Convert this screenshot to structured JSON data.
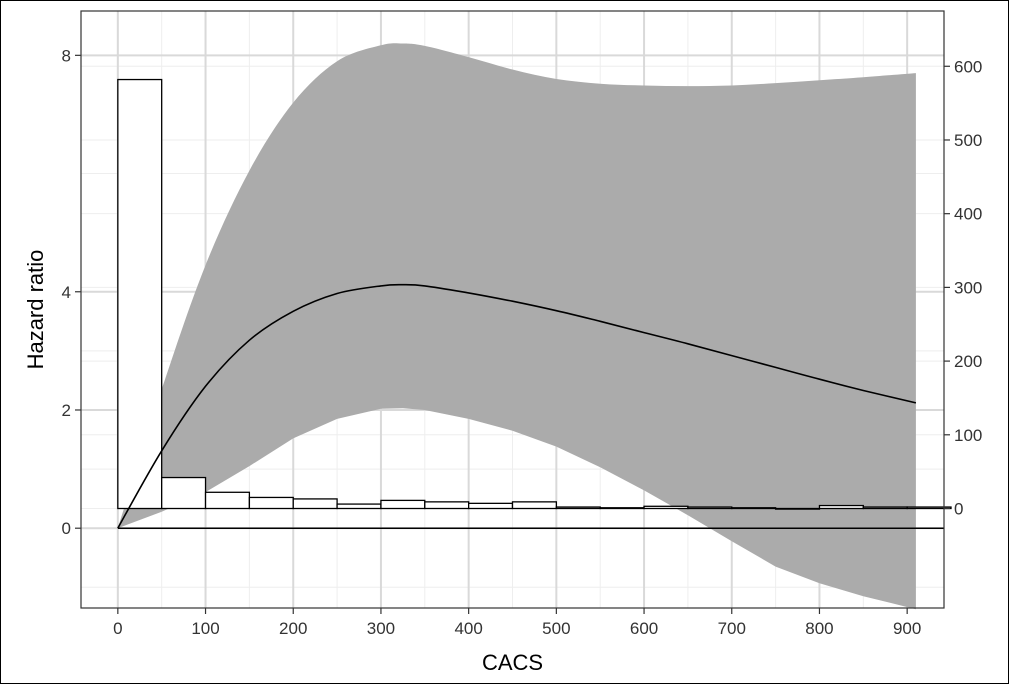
{
  "chart_data": {
    "type": "line",
    "title": "",
    "xlabel": "CACS",
    "ylabel": "Hazard ratio",
    "ylabel_right": "",
    "xlim": [
      -42,
      942
    ],
    "ylim": [
      -1.35,
      8.75
    ],
    "ylim_right": [
      -135,
      675
    ],
    "x_ticks": [
      0,
      100,
      200,
      300,
      400,
      500,
      600,
      700,
      800,
      900
    ],
    "y_ticks": [
      0,
      2,
      4,
      8
    ],
    "y_ticks_right": [
      0,
      100,
      200,
      300,
      400,
      500,
      600
    ],
    "grid": true,
    "series": [
      {
        "role": "estimate",
        "x": [
          0,
          50,
          100,
          150,
          200,
          250,
          300,
          325,
          350,
          400,
          450,
          500,
          550,
          600,
          650,
          700,
          750,
          800,
          850,
          910
        ],
        "y": [
          0,
          1.31,
          2.4,
          3.18,
          3.67,
          3.97,
          4.1,
          4.12,
          4.1,
          3.98,
          3.84,
          3.68,
          3.5,
          3.31,
          3.12,
          2.92,
          2.72,
          2.52,
          2.33,
          2.12
        ]
      },
      {
        "role": "upper",
        "x": [
          0,
          50,
          100,
          150,
          200,
          250,
          300,
          325,
          350,
          400,
          450,
          500,
          550,
          600,
          650,
          700,
          750,
          800,
          850,
          910
        ],
        "y": [
          0,
          2.35,
          4.45,
          6.05,
          7.2,
          7.9,
          8.17,
          8.2,
          8.16,
          7.97,
          7.76,
          7.6,
          7.52,
          7.49,
          7.48,
          7.49,
          7.53,
          7.58,
          7.63,
          7.7
        ]
      },
      {
        "role": "lower",
        "x": [
          0,
          50,
          100,
          150,
          200,
          250,
          300,
          325,
          350,
          400,
          450,
          500,
          550,
          600,
          650,
          700,
          750,
          800,
          850,
          910
        ],
        "y": [
          0,
          0.28,
          0.61,
          1.05,
          1.52,
          1.85,
          2.02,
          2.03,
          2.0,
          1.85,
          1.65,
          1.38,
          1.03,
          0.64,
          0.22,
          -0.22,
          -0.65,
          -0.93,
          -1.15,
          -1.37
        ]
      }
    ],
    "histogram": {
      "bin_width": 50,
      "bins_start": [
        0,
        50,
        100,
        150,
        200,
        250,
        300,
        350,
        400,
        450,
        500,
        550,
        600,
        650,
        700,
        750,
        800,
        850,
        900
      ],
      "counts": [
        582,
        42,
        22,
        15,
        13,
        6,
        11,
        9,
        7,
        9,
        2,
        1,
        3,
        2,
        1,
        0,
        4,
        2,
        2
      ]
    },
    "colors": {
      "band": "#ababab",
      "line": "#000000",
      "grid_major": "#d9d9d9",
      "grid_minor": "#eeeeee",
      "bar_fill": "#ffffff"
    }
  }
}
